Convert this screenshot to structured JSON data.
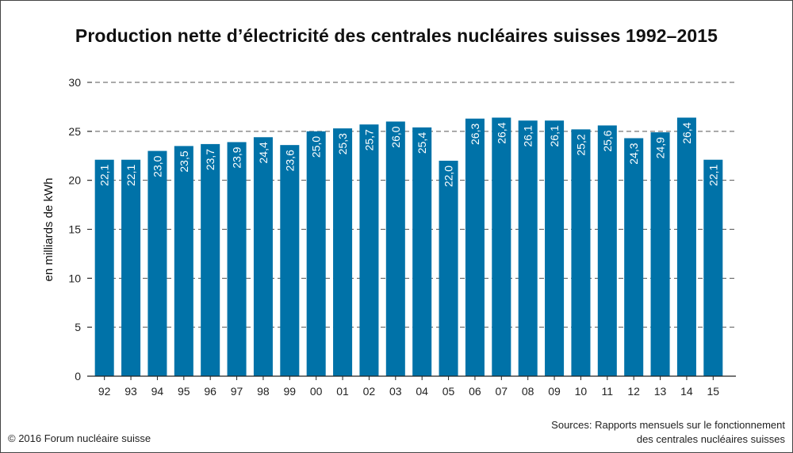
{
  "chart_data": {
    "type": "bar",
    "title": "Production nette d’électricité des centrales nucléaires suisses 1992–2015",
    "xlabel": "",
    "ylabel": "en milliards de kWh",
    "categories": [
      "92",
      "93",
      "94",
      "95",
      "96",
      "97",
      "98",
      "99",
      "00",
      "01",
      "02",
      "03",
      "04",
      "05",
      "06",
      "07",
      "08",
      "09",
      "10",
      "11",
      "12",
      "13",
      "14",
      "15"
    ],
    "values": [
      22.1,
      22.1,
      23.0,
      23.5,
      23.7,
      23.9,
      24.4,
      23.6,
      25.0,
      25.3,
      25.7,
      26.0,
      25.4,
      22.0,
      26.3,
      26.4,
      26.1,
      26.1,
      25.2,
      25.6,
      24.3,
      24.9,
      26.4,
      22.1
    ],
    "value_labels": [
      "22,1",
      "22,1",
      "23,0",
      "23,5",
      "23,7",
      "23,9",
      "24,4",
      "23,6",
      "25,0",
      "25,3",
      "25,7",
      "26,0",
      "25,4",
      "22,0",
      "26,3",
      "26,4",
      "26,1",
      "26,1",
      "25,2",
      "25,6",
      "24,3",
      "24,9",
      "26,4",
      "22,1"
    ],
    "ylim": [
      0,
      30
    ],
    "yticks": [
      0,
      5,
      10,
      15,
      20,
      25,
      30
    ],
    "grid": true,
    "colors": {
      "bar": "#0072a8",
      "label": "#ffffff",
      "grid": "#555555"
    }
  },
  "footer": {
    "source_line1": "Sources: Rapports mensuels sur le fonctionnement",
    "source_line2": "des centrales nucléaires suisses",
    "copyright": "© 2016 Forum nucléaire suisse"
  }
}
